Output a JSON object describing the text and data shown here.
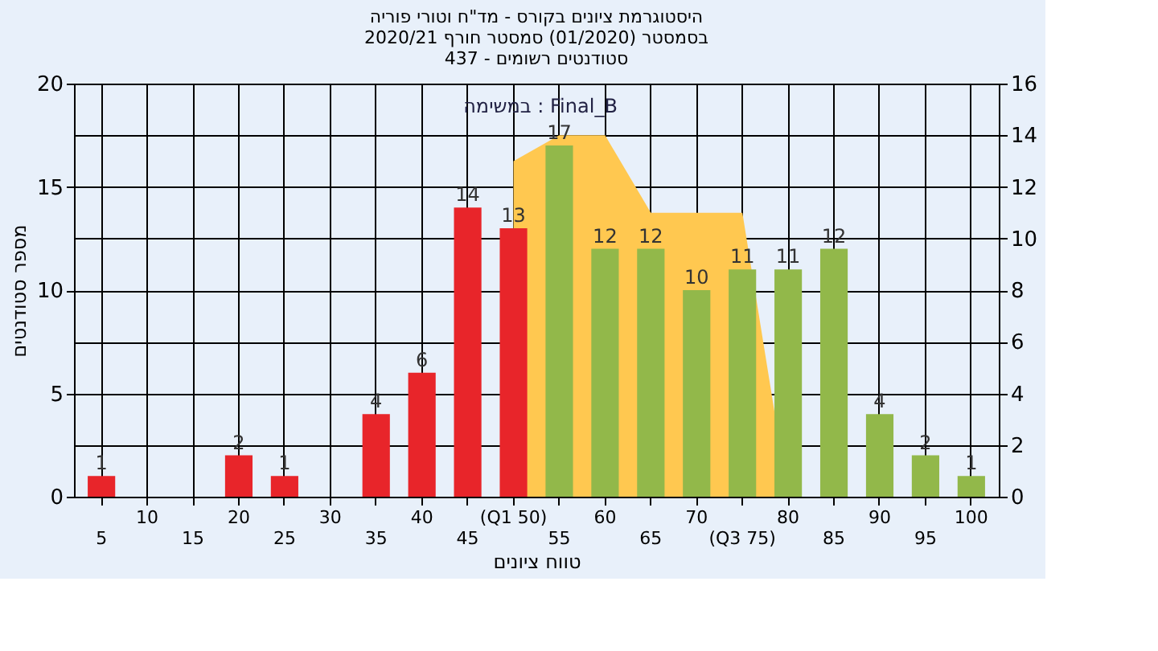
{
  "chart_data": {
    "type": "bar",
    "title": [
      "היסטוגרמת ציונים בקורס - מד\"ח וטורי פוריה",
      "בסמסטר (01/2020) סמסטר חורף 2020/21",
      "סטודנטים רשומים - 437"
    ],
    "xlabel": "טווח ציונים",
    "ylabel": "מספר סטודנטים",
    "annotations": [
      "במשימה : Final_B"
    ],
    "categories": [
      "5",
      "10",
      "15",
      "20",
      "25",
      "30",
      "35",
      "40",
      "45",
      "(Q1 50)",
      "55",
      "60",
      "65",
      "70",
      "(Q3 75)",
      "80",
      "85",
      "90",
      "95",
      "100"
    ],
    "series": [
      {
        "type": "area",
        "axis": "y2",
        "color": "#ffc850",
        "values": [
          null,
          null,
          null,
          null,
          null,
          null,
          null,
          null,
          null,
          13,
          14,
          14,
          11,
          11,
          11,
          0,
          null,
          null,
          null,
          null
        ]
      },
      {
        "values": [
          1,
          0,
          0,
          2,
          1,
          0,
          4,
          6,
          14,
          13,
          17,
          12,
          12,
          10,
          11,
          11,
          12,
          4,
          2,
          1
        ],
        "value_labels": [
          "1",
          null,
          null,
          "2",
          "1",
          null,
          "4",
          "6",
          "14",
          "13",
          "17",
          "12",
          "12",
          "10",
          "11",
          "11",
          "12",
          "4",
          "2",
          "1"
        ],
        "colors": [
          "#e8252a",
          "#e8252a",
          "#e8252a",
          "#e8252a",
          "#e8252a",
          "#e8252a",
          "#e8252a",
          "#e8252a",
          "#e8252a",
          "#e8252a",
          "#92b84a",
          "#92b84a",
          "#92b84a",
          "#92b84a",
          "#92b84a",
          "#92b84a",
          "#92b84a",
          "#92b84a",
          "#92b84a",
          "#92b84a"
        ]
      }
    ],
    "ylim": [
      0,
      20
    ],
    "yticks": [
      0,
      5,
      10,
      15,
      20
    ],
    "y2lim": [
      0,
      16
    ],
    "y2ticks": [
      0,
      2,
      4,
      6,
      8,
      10,
      12,
      14,
      16
    ],
    "grid": true
  }
}
